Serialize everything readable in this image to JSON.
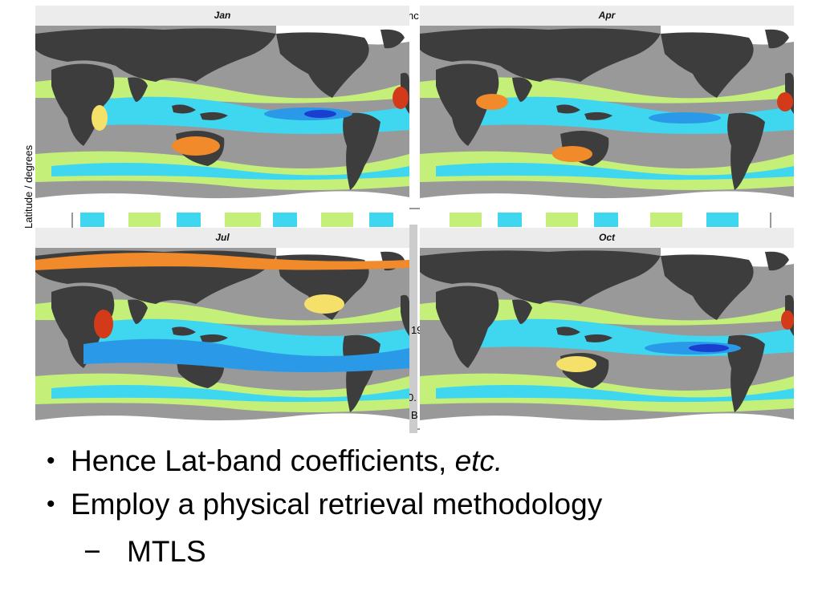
{
  "figure": {
    "y_axis_label": "Latitude / degrees",
    "behind_fragments": [
      "nc",
      "19",
      "0.",
      "B"
    ],
    "panels": [
      {
        "id": "jan",
        "title": "Jan"
      },
      {
        "id": "apr",
        "title": "Apr"
      },
      {
        "id": "jul",
        "title": "Jul"
      },
      {
        "id": "oct",
        "title": "Oct"
      }
    ],
    "colors": {
      "land": "#3d3d3d",
      "ocean": "#999999",
      "sea_ice": "#ffffff",
      "yellow_green": "#c4f07a",
      "light_blue": "#3fd6f0",
      "mid_blue": "#2a9ae8",
      "deep_blue": "#1a3fd0",
      "orange": "#f08a2a",
      "yellow": "#f5e06a",
      "red": "#d23a1a"
    }
  },
  "bullets": [
    {
      "text": "Hence Lat-band coefficients, ",
      "emphasis": "etc."
    },
    {
      "text": "Employ a physical retrieval methodology"
    }
  ],
  "sub_bullets": [
    {
      "dash": "−",
      "text": "MTLS"
    }
  ]
}
